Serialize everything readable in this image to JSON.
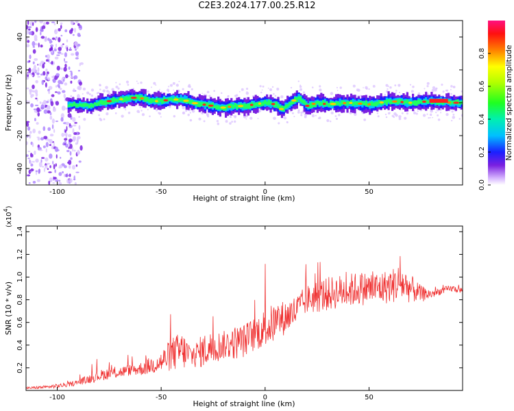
{
  "title": "C2E3.2024.177.00.25.R12",
  "colors": {
    "snr_line": "#ef3030",
    "spectrogram_low": "#e8d0ff",
    "spectrogram_core": "#00e0e0",
    "spectrogram_peak": "#ff2020"
  },
  "chart_data": [
    {
      "type": "heatmap",
      "title": "C2E3.2024.177.00.25.R12",
      "xlabel": "Height of straight line (km)",
      "ylabel": "Frequency (Hz)",
      "xlim": [
        -115,
        95
      ],
      "ylim": [
        -50,
        50
      ],
      "xticks": [
        -100,
        -50,
        0,
        50
      ],
      "xtick_labels": [
        "-100",
        "-50",
        "0",
        "50"
      ],
      "yticks": [
        -40,
        -20,
        0,
        20,
        40
      ],
      "ytick_labels": [
        "-40",
        "-20",
        "0",
        "20",
        "40"
      ],
      "colorbar": {
        "label": "Normalized spectral amplitude",
        "range": [
          0,
          1
        ],
        "ticks": [
          0.0,
          0.2,
          0.4,
          0.6,
          0.8
        ],
        "tick_labels": [
          "0.0",
          "0.2",
          "0.4",
          "0.6",
          "0.8"
        ]
      },
      "ridge": {
        "x": [
          -115,
          -108,
          -100,
          -92,
          -85,
          -80,
          -75,
          -70,
          -65,
          -60,
          -55,
          -50,
          -45,
          -40,
          -35,
          -30,
          -25,
          -20,
          -15,
          -10,
          -5,
          0,
          5,
          8,
          12,
          16,
          20,
          25,
          30,
          40,
          50,
          60,
          70,
          80,
          90,
          95
        ],
        "frequency": [
          -2,
          -1,
          -2,
          -1,
          -2,
          0,
          1,
          2,
          3,
          3,
          1,
          1,
          2,
          2,
          0,
          -1,
          -2,
          -3,
          -2,
          -2,
          -1,
          0,
          -1,
          -4,
          0,
          3,
          -2,
          0,
          -1,
          0,
          -1,
          1,
          0,
          1,
          0,
          0
        ]
      }
    },
    {
      "type": "line",
      "xlabel": "Height of straight line (km)",
      "ylabel": "SNR (10 * v/v)",
      "y_multiplier": "(x10",
      "y_multiplier_exp": "4",
      "xlim": [
        -115,
        95
      ],
      "ylim": [
        0,
        1.45
      ],
      "xticks": [
        -100,
        -50,
        0,
        50
      ],
      "xtick_labels": [
        "-100",
        "-50",
        "0",
        "50"
      ],
      "yticks": [
        0.2,
        0.4,
        0.6,
        0.8,
        1.0,
        1.2,
        1.4
      ],
      "ytick_labels": [
        "0.2",
        "0.4",
        "0.6",
        "0.8",
        "1.0",
        "1.2",
        "1.4"
      ],
      "series": [
        {
          "color": "#ef3030",
          "x": [
            -115,
            -105,
            -95,
            -90,
            -85,
            -80,
            -75,
            -70,
            -65,
            -60,
            -55,
            -50,
            -45,
            -40,
            -35,
            -30,
            -25,
            -20,
            -15,
            -10,
            -5,
            0,
            5,
            10,
            15,
            20,
            25,
            30,
            35,
            40,
            45,
            50,
            55,
            60,
            65,
            70,
            75,
            80,
            85,
            90,
            95
          ],
          "y": [
            0.02,
            0.03,
            0.05,
            0.07,
            0.1,
            0.13,
            0.15,
            0.16,
            0.18,
            0.19,
            0.22,
            0.25,
            0.32,
            0.35,
            0.3,
            0.35,
            0.38,
            0.4,
            0.42,
            0.44,
            0.5,
            0.55,
            0.6,
            0.65,
            0.7,
            0.8,
            0.83,
            0.85,
            0.87,
            0.88,
            0.9,
            0.9,
            0.9,
            0.92,
            0.95,
            0.9,
            0.85,
            0.85,
            0.88,
            0.9,
            0.88
          ],
          "spread": [
            0.02,
            0.03,
            0.04,
            0.05,
            0.08,
            0.1,
            0.1,
            0.1,
            0.1,
            0.12,
            0.15,
            0.2,
            0.3,
            0.35,
            0.2,
            0.3,
            0.3,
            0.25,
            0.3,
            0.3,
            0.3,
            0.35,
            0.35,
            0.3,
            0.3,
            0.25,
            0.3,
            0.3,
            0.3,
            0.3,
            0.3,
            0.3,
            0.3,
            0.3,
            0.35,
            0.25,
            0.15,
            0.08,
            0.06,
            0.06,
            0.05
          ]
        }
      ]
    }
  ]
}
